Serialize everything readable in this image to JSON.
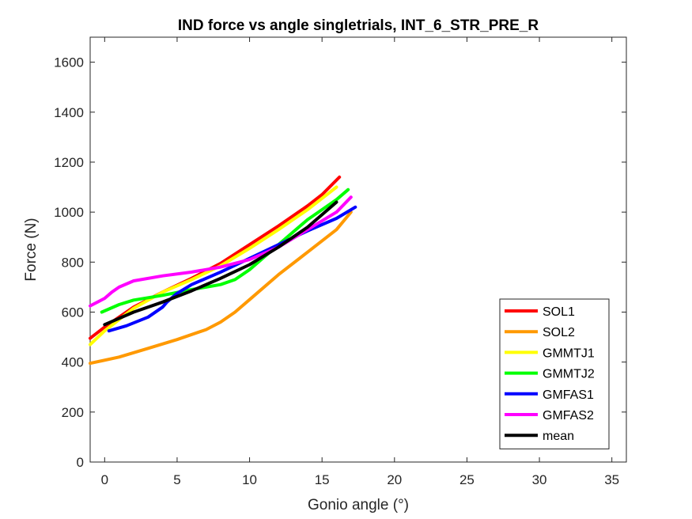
{
  "chart_data": {
    "type": "line",
    "title": "IND force vs angle singletrials, INT_6_STR_PRE_R",
    "xlabel": "Gonio angle (°)",
    "ylabel": "Force (N)",
    "xlim": [
      -1,
      36
    ],
    "ylim": [
      0,
      1700
    ],
    "xticks": [
      0,
      5,
      10,
      15,
      20,
      25,
      30,
      35
    ],
    "yticks": [
      0,
      200,
      400,
      600,
      800,
      1000,
      1200,
      1400,
      1600
    ],
    "grid": false,
    "legend_position": "bottom-right",
    "series": [
      {
        "name": "SOL1",
        "color": "#ff0000",
        "x": [
          -1,
          0,
          2,
          4,
          6,
          8,
          10,
          12,
          14,
          15,
          16.2
        ],
        "y": [
          495,
          540,
          620,
          680,
          735,
          795,
          870,
          945,
          1025,
          1070,
          1140
        ]
      },
      {
        "name": "SOL2",
        "color": "#ff9900",
        "x": [
          -1,
          1,
          3,
          5,
          7,
          8,
          9,
          10,
          12,
          14,
          16,
          17
        ],
        "y": [
          395,
          420,
          455,
          490,
          530,
          560,
          600,
          650,
          750,
          840,
          930,
          1000
        ]
      },
      {
        "name": "GMMTJ1",
        "color": "#ffff00",
        "x": [
          -1,
          0,
          2,
          4,
          6,
          8,
          10,
          12,
          14,
          16
        ],
        "y": [
          470,
          525,
          615,
          680,
          730,
          785,
          855,
          930,
          1010,
          1100
        ]
      },
      {
        "name": "GMMTJ2",
        "color": "#00ff00",
        "x": [
          -0.2,
          1,
          2,
          4,
          6,
          7,
          8,
          9,
          10,
          11,
          12,
          13,
          14,
          15,
          16,
          16.8
        ],
        "y": [
          600,
          630,
          648,
          667,
          690,
          700,
          710,
          730,
          770,
          820,
          870,
          920,
          970,
          1010,
          1050,
          1090
        ]
      },
      {
        "name": "GMFAS1",
        "color": "#0000ff",
        "x": [
          0.3,
          1.5,
          3,
          4,
          4.3,
          5,
          6,
          8,
          10,
          12,
          14,
          16,
          17.3
        ],
        "y": [
          525,
          545,
          580,
          620,
          640,
          675,
          710,
          760,
          815,
          870,
          925,
          975,
          1020
        ]
      },
      {
        "name": "GMFAS2",
        "color": "#ff00ff",
        "x": [
          -1,
          0,
          0.5,
          1,
          2,
          4,
          6,
          8,
          10,
          12,
          14,
          16,
          17
        ],
        "y": [
          625,
          655,
          680,
          700,
          725,
          745,
          760,
          780,
          810,
          860,
          930,
          1000,
          1060
        ]
      },
      {
        "name": "mean",
        "color": "#000000",
        "x": [
          0,
          1,
          2,
          4,
          6,
          8,
          10,
          12,
          14,
          16
        ],
        "y": [
          550,
          575,
          600,
          640,
          685,
          735,
          790,
          860,
          940,
          1040
        ]
      }
    ]
  }
}
